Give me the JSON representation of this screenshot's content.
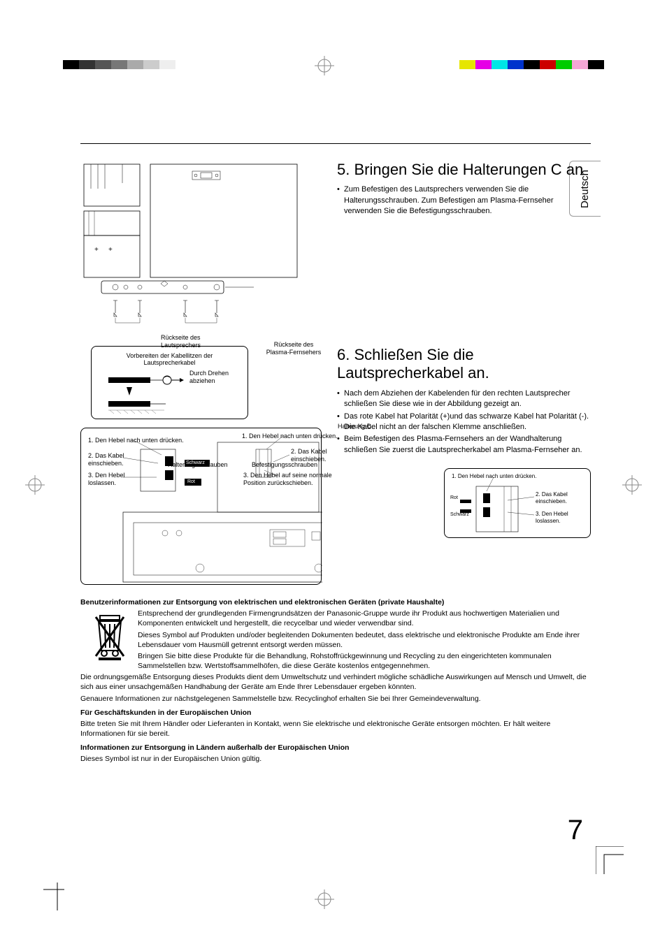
{
  "colorBarsLeft": [
    "#000000",
    "#333333",
    "#555555",
    "#777777",
    "#aaaaaa",
    "#cccccc",
    "#eeeeee"
  ],
  "colorBarsRight": [
    "#e6e600",
    "#e600e6",
    "#00e6e6",
    "#0033cc",
    "#000000",
    "#cc0000",
    "#00cc00",
    "#f5a6d6",
    "#000000"
  ],
  "language": "Deutsch",
  "step5": {
    "title": "5. Bringen Sie die Halterungen C an",
    "bullet1": "Zum Befestigen des Lautsprechers verwenden Sie die Halterungsschrauben. Zum Befestigen am Plasma-Fernseher verwenden Sie die Befestigungsschrauben."
  },
  "diagram5": {
    "label_speaker_back": "Rückseite des Lautsprechers",
    "label_tv_back": "Rückseite des Plasma-Fernsehers",
    "label_bracket": "Halterung C",
    "label_bracket_screws": "Halterungsschrauben",
    "label_mount_screws": "Befestigungsschrauben"
  },
  "step6": {
    "title": "6. Schließen Sie die Lautsprecherkabel an.",
    "bullet1": "Nach dem Abziehen der Kabelenden für den rechten Lautsprecher schließen Sie diese wie in der Abbildung gezeigt an.",
    "bullet2": "Das rote Kabel hat Polarität (+)und das schwarze Kabel hat Polarität (-). Die Kabel nicht an der falschen Klemme anschließen.",
    "bullet3": "Beim Befestigen des Plasma-Fernsehers an der Wandhalterung schließen Sie zuerst die Lautsprecherkabel am Plasma-Fernseher an."
  },
  "diagram6a": {
    "title": "Vorbereiten der Kabellitzen der Lautsprecherkabel",
    "instruction": "Durch Drehen abziehen"
  },
  "diagram6b": {
    "left1": "1. Den Hebel nach unten drücken.",
    "left2": "2. Das Kabel einschieben.",
    "left3": "3. Den Hebel loslassen.",
    "right1": "1. Den Hebel nach unten drücken.",
    "right2": "2. Das Kabel einschieben.",
    "right3": "3. Den Hebel auf seine normale Position zurückschieben.",
    "black": "Schwarz",
    "red": "Rot"
  },
  "diagram6c": {
    "step1": "1. Den Hebel nach unten drücken.",
    "step2": "2. Das Kabel einschieben.",
    "step3": "3. Den Hebel loslassen.",
    "red": "Rot",
    "black": "Schwarz"
  },
  "info": {
    "title1": "Benutzerinformationen zur Entsorgung von elektrischen und elektronischen Geräten (private Haushalte)",
    "p1": "Entsprechend der grundlegenden Firmengrundsätzen der Panasonic-Gruppe wurde ihr Produkt aus hochwertigen Materialien und Komponenten entwickelt und hergestellt, die recycelbar und wieder verwendbar sind.",
    "p2": "Dieses Symbol auf Produkten und/oder begleitenden Dokumenten bedeutet, dass elektrische und elektronische Produkte am Ende ihrer Lebensdauer vom Hausmüll getrennt entsorgt werden müssen.",
    "p3": "Bringen Sie bitte diese Produkte für die Behandlung, Rohstoffrückgewinnung und Recycling zu den eingerichteten kommunalen Sammelstellen bzw. Wertstoffsammelhöfen, die diese Geräte kostenlos entgegennehmen.",
    "p4": "Die ordnungsgemäße Entsorgung dieses Produkts dient dem Umweltschutz und verhindert mögliche schädliche Auswirkungen auf Mensch und Umwelt, die sich aus einer unsachgemäßen Handhabung der Geräte am Ende Ihrer Lebensdauer ergeben könnten.",
    "p5": "Genauere Informationen zur nächstgelegenen Sammelstelle bzw. Recyclinghof erhalten Sie bei Ihrer Gemeindeverwaltung.",
    "title2": "Für Geschäftskunden in der Europäischen Union",
    "p6": "Bitte treten Sie mit Ihrem Händler oder Lieferanten in Kontakt, wenn Sie elektrische und elektronische Geräte entsorgen möchten. Er hält weitere Informationen für sie bereit.",
    "title3": "Informationen zur Entsorgung in Ländern außerhalb der Europäischen Union",
    "p7": "Dieses Symbol ist nur in der Europäischen Union gültig."
  },
  "pageNumber": "7"
}
